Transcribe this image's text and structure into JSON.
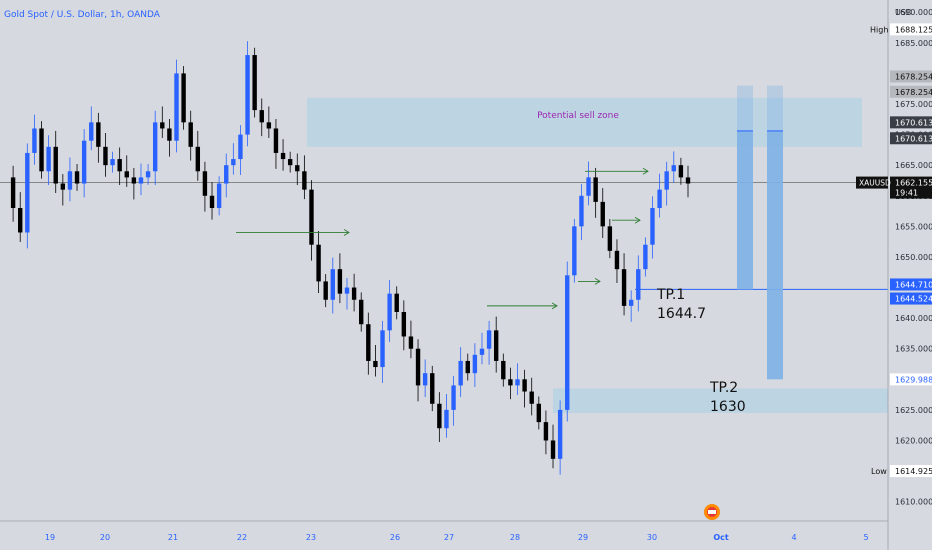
{
  "header": {
    "title": "Gold Spot / U.S. Dollar, 1h, OANDA"
  },
  "price_axis": {
    "currency": "USD",
    "high_label": "High",
    "low_label": "Low",
    "last_price_symbol": "XAUUSD",
    "countdown": "19:41"
  },
  "colors": {
    "background": "#d6d9df",
    "candle_up": "#2962ff",
    "candle_down": "#000000",
    "zone_fill": "#a9cfe6",
    "tp_bar": "#7fb2e5",
    "arrow": "#2e7d32",
    "tp_line": "#2962ff",
    "zone_text": "#9c27b0"
  },
  "annotations": {
    "sell_zone_label": "Potential sell zone",
    "tp1_label": "TP.1",
    "tp1_value": "1644.7",
    "tp2_label": "TP.2",
    "tp2_value": "1630"
  },
  "chart_data": {
    "type": "candlestick",
    "title": "Gold Spot / U.S. Dollar, 1h, OANDA",
    "ylim": [
      1607.0,
      1692.0
    ],
    "y_ticks": [
      1610.0,
      1615.0,
      1620.0,
      1625.0,
      1630.0,
      1635.0,
      1640.0,
      1645.0,
      1650.0,
      1655.0,
      1660.0,
      1665.0,
      1670.0,
      1675.0,
      1680.0,
      1685.0,
      1690.0
    ],
    "x_ticks": [
      "19",
      "20",
      "21",
      "22",
      "23",
      "26",
      "27",
      "28",
      "29",
      "30",
      "Oct",
      "4",
      "5"
    ],
    "x_ticks_highlight": [
      "Oct"
    ],
    "grid": false,
    "price_labels": [
      {
        "name": "high",
        "value": "1688.125"
      },
      {
        "name": "level-a",
        "value": "1678.254"
      },
      {
        "name": "level-b",
        "value": "1678.254"
      },
      {
        "name": "zone-top-a",
        "value": "1670.613"
      },
      {
        "name": "zone-top-b",
        "value": "1670.613"
      },
      {
        "name": "last",
        "value": "1662.155"
      },
      {
        "name": "tp1-a",
        "value": "1644.710"
      },
      {
        "name": "tp1-b",
        "value": "1644.524"
      },
      {
        "name": "tp2",
        "value": "1629.988"
      },
      {
        "name": "low",
        "value": "1614.925"
      }
    ],
    "sell_zone": [
      1668.0,
      1676.0
    ],
    "support_zone": [
      1624.5,
      1628.5
    ],
    "tp1": 1644.7,
    "tp2": 1630,
    "last_price": 1662.155,
    "high": 1688.125,
    "low": 1614.925,
    "path": [
      1663,
      1658,
      1654,
      1667,
      1671,
      1664,
      1668,
      1662,
      1661,
      1664,
      1662,
      1669,
      1672,
      1668,
      1665,
      1666,
      1664,
      1663,
      1662,
      1663,
      1664,
      1672,
      1671,
      1669,
      1680,
      1672,
      1668,
      1664,
      1660,
      1658,
      1662,
      1665,
      1666,
      1670,
      1683,
      1674,
      1672,
      1671,
      1667,
      1666,
      1665,
      1664,
      1661,
      1652,
      1646,
      1643,
      1648,
      1644,
      1645,
      1643,
      1639,
      1633,
      1632,
      1638,
      1644,
      1641,
      1637,
      1635,
      1629,
      1631,
      1626,
      1622,
      1625,
      1629,
      1633,
      1631,
      1634,
      1635,
      1638,
      1633,
      1630,
      1629,
      1630,
      1628,
      1626,
      1623,
      1620,
      1617,
      1625,
      1647,
      1655,
      1660,
      1663,
      1659,
      1655,
      1651,
      1648,
      1642,
      1643,
      1648,
      1652,
      1658,
      1661,
      1664,
      1665,
      1663,
      1662
    ]
  }
}
